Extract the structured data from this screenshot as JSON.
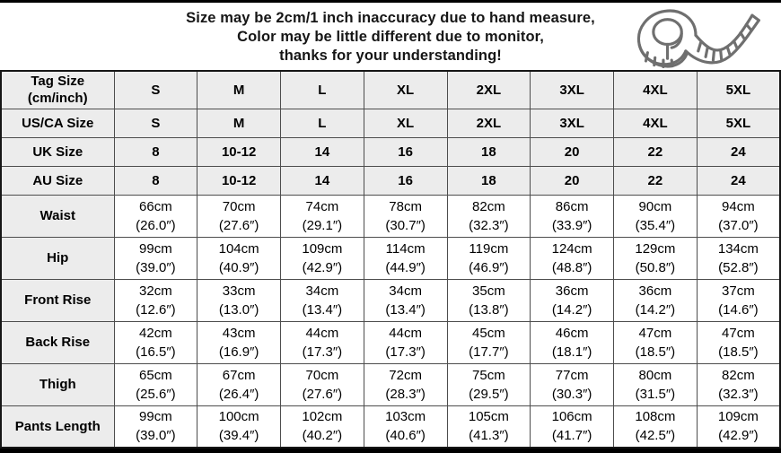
{
  "colors": {
    "header_row_bg": "#ececec",
    "cell_bg": "#ffffff",
    "grid_border": "#4d4d4d",
    "outer_border": "#161616",
    "text": "#000000",
    "icon_stroke": "#6f6f6f"
  },
  "header": {
    "icon": "measuring-tape-icon",
    "lines": [
      "Size may be 2cm/1 inch inaccuracy due to hand measure,",
      "Color may be little different due to monitor,",
      "thanks for your understanding!"
    ]
  },
  "table": {
    "size_rows": [
      {
        "label": "Tag Size (cm/inch)",
        "label_lines": [
          "Tag Size",
          "(cm/inch)"
        ],
        "values": [
          "S",
          "M",
          "L",
          "XL",
          "2XL",
          "3XL",
          "4XL",
          "5XL"
        ]
      },
      {
        "label": "US/CA Size",
        "label_lines": [
          "US/CA Size"
        ],
        "values": [
          "S",
          "M",
          "L",
          "XL",
          "2XL",
          "3XL",
          "4XL",
          "5XL"
        ]
      },
      {
        "label": "UK Size",
        "label_lines": [
          "UK Size"
        ],
        "values": [
          "8",
          "10-12",
          "14",
          "16",
          "18",
          "20",
          "22",
          "24"
        ]
      },
      {
        "label": "AU Size",
        "label_lines": [
          "AU Size"
        ],
        "values": [
          "8",
          "10-12",
          "14",
          "16",
          "18",
          "20",
          "22",
          "24"
        ]
      }
    ],
    "measure_rows": [
      {
        "label": "Waist",
        "cm": [
          "66cm",
          "70cm",
          "74cm",
          "78cm",
          "82cm",
          "86cm",
          "90cm",
          "94cm"
        ],
        "inch": [
          "(26.0″)",
          "(27.6″)",
          "(29.1″)",
          "(30.7″)",
          "(32.3″)",
          "(33.9″)",
          "(35.4″)",
          "(37.0″)"
        ]
      },
      {
        "label": "Hip",
        "cm": [
          "99cm",
          "104cm",
          "109cm",
          "114cm",
          "119cm",
          "124cm",
          "129cm",
          "134cm"
        ],
        "inch": [
          "(39.0″)",
          "(40.9″)",
          "(42.9″)",
          "(44.9″)",
          "(46.9″)",
          "(48.8″)",
          "(50.8″)",
          "(52.8″)"
        ]
      },
      {
        "label": "Front Rise",
        "cm": [
          "32cm",
          "33cm",
          "34cm",
          "34cm",
          "35cm",
          "36cm",
          "36cm",
          "37cm"
        ],
        "inch": [
          "(12.6″)",
          "(13.0″)",
          "(13.4″)",
          "(13.4″)",
          "(13.8″)",
          "(14.2″)",
          "(14.2″)",
          "(14.6″)"
        ]
      },
      {
        "label": "Back Rise",
        "cm": [
          "42cm",
          "43cm",
          "44cm",
          "44cm",
          "45cm",
          "46cm",
          "47cm",
          "47cm"
        ],
        "inch": [
          "(16.5″)",
          "(16.9″)",
          "(17.3″)",
          "(17.3″)",
          "(17.7″)",
          "(18.1″)",
          "(18.5″)",
          "(18.5″)"
        ]
      },
      {
        "label": "Thigh",
        "cm": [
          "65cm",
          "67cm",
          "70cm",
          "72cm",
          "75cm",
          "77cm",
          "80cm",
          "82cm"
        ],
        "inch": [
          "(25.6″)",
          "(26.4″)",
          "(27.6″)",
          "(28.3″)",
          "(29.5″)",
          "(30.3″)",
          "(31.5″)",
          "(32.3″)"
        ]
      },
      {
        "label": "Pants Length",
        "cm": [
          "99cm",
          "100cm",
          "102cm",
          "103cm",
          "105cm",
          "106cm",
          "108cm",
          "109cm"
        ],
        "inch": [
          "(39.0″)",
          "(39.4″)",
          "(40.2″)",
          "(40.6″)",
          "(41.3″)",
          "(41.7″)",
          "(42.5″)",
          "(42.9″)"
        ]
      }
    ]
  }
}
